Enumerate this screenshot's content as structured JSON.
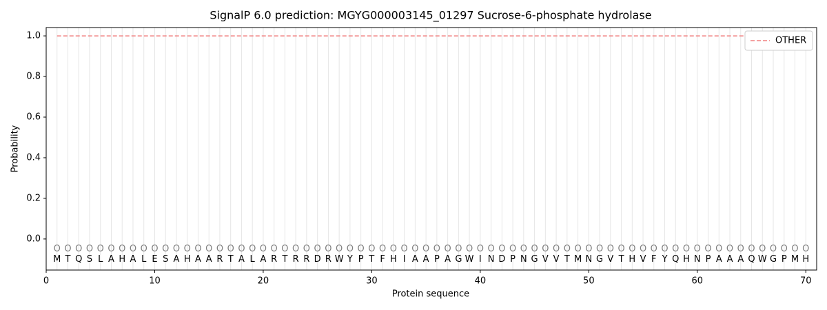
{
  "chart_data": {
    "type": "line",
    "title": "SignalP 6.0 prediction: MGYG000003145_01297 Sucrose-6-phosphate hydrolase",
    "xlabel": "Protein sequence",
    "ylabel": "Probability",
    "x": [
      1,
      2,
      3,
      4,
      5,
      6,
      7,
      8,
      9,
      10,
      11,
      12,
      13,
      14,
      15,
      16,
      17,
      18,
      19,
      20,
      21,
      22,
      23,
      24,
      25,
      26,
      27,
      28,
      29,
      30,
      31,
      32,
      33,
      34,
      35,
      36,
      37,
      38,
      39,
      40,
      41,
      42,
      43,
      44,
      45,
      46,
      47,
      48,
      49,
      50,
      51,
      52,
      53,
      54,
      55,
      56,
      57,
      58,
      59,
      60,
      61,
      62,
      63,
      64,
      65,
      66,
      67,
      68,
      69,
      70
    ],
    "sequence": [
      "M",
      "T",
      "Q",
      "S",
      "L",
      "A",
      "H",
      "A",
      "L",
      "E",
      "S",
      "A",
      "H",
      "A",
      "A",
      "R",
      "T",
      "A",
      "L",
      "A",
      "R",
      "T",
      "R",
      "R",
      "D",
      "R",
      "W",
      "Y",
      "P",
      "T",
      "F",
      "H",
      "I",
      "A",
      "A",
      "P",
      "A",
      "G",
      "W",
      "I",
      "N",
      "D",
      "P",
      "N",
      "G",
      "V",
      "V",
      "T",
      "M",
      "N",
      "G",
      "V",
      "T",
      "H",
      "V",
      "F",
      "Y",
      "Q",
      "H",
      "N",
      "P",
      "A",
      "A",
      "A",
      "Q",
      "W",
      "G",
      "P",
      "M",
      "H"
    ],
    "region_labels": [
      "O",
      "O",
      "O",
      "O",
      "O",
      "O",
      "O",
      "O",
      "O",
      "O",
      "O",
      "O",
      "O",
      "O",
      "O",
      "O",
      "O",
      "O",
      "O",
      "O",
      "O",
      "O",
      "O",
      "O",
      "O",
      "O",
      "O",
      "O",
      "O",
      "O",
      "O",
      "O",
      "O",
      "O",
      "O",
      "O",
      "O",
      "O",
      "O",
      "O",
      "O",
      "O",
      "O",
      "O",
      "O",
      "O",
      "O",
      "O",
      "O",
      "O",
      "O",
      "O",
      "O",
      "O",
      "O",
      "O",
      "O",
      "O",
      "O",
      "O",
      "O",
      "O",
      "O",
      "O",
      "O",
      "O",
      "O",
      "O",
      "O",
      "O"
    ],
    "series": [
      {
        "name": "OTHER",
        "color": "#f08080",
        "dashed": true,
        "values": [
          1,
          1,
          1,
          1,
          1,
          1,
          1,
          1,
          1,
          1,
          1,
          1,
          1,
          1,
          1,
          1,
          1,
          1,
          1,
          1,
          1,
          1,
          1,
          1,
          1,
          1,
          1,
          1,
          1,
          1,
          1,
          1,
          1,
          1,
          1,
          1,
          1,
          1,
          1,
          1,
          1,
          1,
          1,
          1,
          1,
          1,
          1,
          1,
          1,
          1,
          1,
          1,
          1,
          1,
          1,
          1,
          1,
          1,
          1,
          1,
          1,
          1,
          1,
          1,
          1,
          1,
          1,
          1,
          1,
          1
        ]
      }
    ],
    "xlim": [
      0,
      71.0
    ],
    "ylim": [
      -0.153,
      1.041
    ],
    "xticks": [
      0,
      10,
      20,
      30,
      40,
      50,
      60,
      70
    ],
    "yticks": [
      {
        "value": 0,
        "label": "0.0"
      },
      {
        "value": 0.2,
        "label": "0.2"
      },
      {
        "value": 0.4,
        "label": "0.4"
      },
      {
        "value": 0.6,
        "label": "0.6"
      },
      {
        "value": 0.8,
        "label": "0.8"
      },
      {
        "value": 1,
        "label": "1.0"
      }
    ],
    "grid": true,
    "legend": "upper right"
  }
}
